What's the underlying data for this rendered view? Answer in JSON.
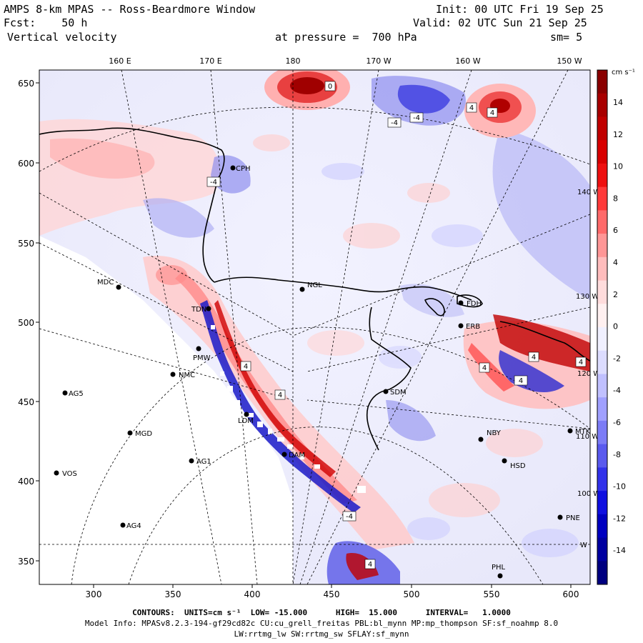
{
  "header": {
    "line1_left": "AMPS 8-km MPAS -- Ross-Beardmore Window",
    "line1_right": "Init: 00 UTC Fri 19 Sep 25",
    "line2_left": "Fcst:    50 h",
    "line2_right": "Valid: 02 UTC Sun 21 Sep 25",
    "line3_left": "Vertical velocity",
    "line3_mid": "at pressure =  700 hPa",
    "line3_right": "sm= 5"
  },
  "map": {
    "top_lon_labels": [
      "160 E",
      "170 E",
      "180",
      "170 W",
      "160 W",
      "150 W"
    ],
    "y_ticks": [
      "650",
      "600",
      "550",
      "500",
      "450",
      "400",
      "350"
    ],
    "x_ticks": [
      "300",
      "350",
      "400",
      "450",
      "500",
      "550",
      "600"
    ],
    "in_map_labels": [
      "140 W",
      "130 W",
      "120 W",
      "110 W",
      "100 W",
      "W"
    ],
    "stations": [
      {
        "name": "CPH"
      },
      {
        "name": "MDC"
      },
      {
        "name": "NGL"
      },
      {
        "name": "TDN"
      },
      {
        "name": "FDH"
      },
      {
        "name": "ERB"
      },
      {
        "name": "PMW"
      },
      {
        "name": "AG5"
      },
      {
        "name": "NMC"
      },
      {
        "name": "SDM"
      },
      {
        "name": "LDM"
      },
      {
        "name": "MGD"
      },
      {
        "name": "NBY"
      },
      {
        "name": "MTK"
      },
      {
        "name": "AG1"
      },
      {
        "name": "DAM"
      },
      {
        "name": "HSD"
      },
      {
        "name": "VOS"
      },
      {
        "name": "PNE"
      },
      {
        "name": "AG4"
      },
      {
        "name": "PHL"
      }
    ],
    "contour_labels": [
      "0",
      "-4",
      "-4",
      "4",
      "4",
      "4",
      "4",
      "4",
      "4",
      "4",
      "4",
      "-4",
      "4",
      "-4"
    ]
  },
  "colorbar": {
    "units": "cm s⁻¹",
    "labels": [
      "14",
      "12",
      "10",
      "8",
      "6",
      "4",
      "2",
      "0",
      "-2",
      "-4",
      "-6",
      "-8",
      "-10",
      "-12",
      "-14"
    ],
    "colors": [
      "#8a0000",
      "#a80000",
      "#c00000",
      "#d80000",
      "#ee1010",
      "#ff3a3a",
      "#ff6a6a",
      "#ff9696",
      "#ffbcbc",
      "#ffdcdc",
      "#fff0f0",
      "#f0f0ff",
      "#dcdcff",
      "#c0c0ff",
      "#a0a0ff",
      "#7c7cf6",
      "#5a5aee",
      "#3232ea",
      "#1010e0",
      "#0000c0",
      "#0000a0",
      "#000080"
    ]
  },
  "footer": {
    "contours_line": "CONTOURS:  UNITS=cm s⁻¹  LOW= -15.000      HIGH=  15.000      INTERVAL=   1.0000",
    "model_line": "Model Info: MPASv8.2.3-194-gf29cd82c CU:cu_grell_freitas PBL:bl_mynn MP:mp_thompson SF:sf_noahmp 8.0",
    "model_line2": "LW:rrtmg_lw SW:rrtmg_sw SFLAY:sf_mynn"
  }
}
